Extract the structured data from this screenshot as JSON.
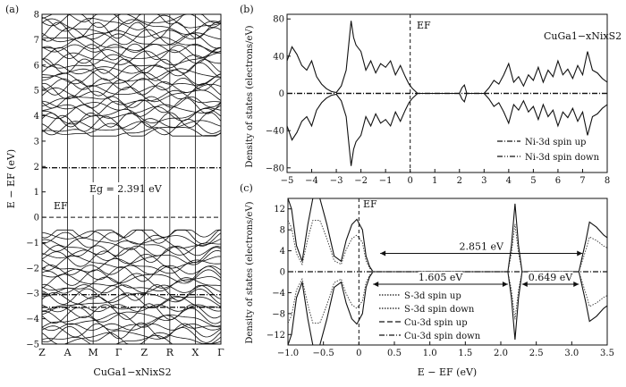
{
  "chart_data": [
    {
      "panel_label": "(a)",
      "type": "line",
      "xlabel": "CuGa1−xNixS2",
      "ylabel": "E − EF (eV)",
      "ylim": [
        -5,
        8
      ],
      "y_ticks": [
        "−5",
        "−4",
        "−3",
        "−2",
        "−1",
        "0",
        "1",
        "2",
        "3",
        "4",
        "5",
        "6",
        "7",
        "8"
      ],
      "y_tick_values": [
        -5,
        -4,
        -3,
        -2,
        -1,
        0,
        1,
        2,
        3,
        4,
        5,
        6,
        7,
        8
      ],
      "k_points": [
        "Z",
        "A",
        "M",
        "Γ",
        "Z",
        "R",
        "X",
        "Γ"
      ],
      "fermi_label": "EF",
      "gap_label": "Eg = 2.391 eV",
      "band_gap_eV": 2.391,
      "flat_bands": [
        {
          "level": 1.95,
          "style": "dash-dot"
        },
        {
          "level": -3.05,
          "style": "dash-dot"
        },
        {
          "level": -3.55,
          "style": "dash-dot"
        }
      ],
      "conduction_band_window": [
        3.2,
        8
      ],
      "valence_band_window": [
        -5,
        -0.5
      ]
    },
    {
      "panel_label": "(b)",
      "type": "line",
      "title": "CuGa1−xNixS2",
      "xlabel": "",
      "ylabel": "Density of states (electrons/eV)",
      "xlim": [
        -5,
        8
      ],
      "ylim": [
        -85,
        85
      ],
      "x_ticks": [
        "−5",
        "−4",
        "−3",
        "−2",
        "−1",
        "0",
        "1",
        "2",
        "3",
        "4",
        "5",
        "6",
        "7",
        "8"
      ],
      "x_tick_values": [
        -5,
        -4,
        -3,
        -2,
        -1,
        0,
        1,
        2,
        3,
        4,
        5,
        6,
        7,
        8
      ],
      "y_ticks": [
        "−80",
        "−40",
        "0",
        "40",
        "80"
      ],
      "y_tick_values": [
        -80,
        -40,
        0,
        40,
        80
      ],
      "fermi_label": "EF",
      "legend_position": "bottom-right",
      "series": [
        {
          "name": "Ni-3d spin up",
          "style": "dash-dot",
          "x": [
            -5,
            8
          ],
          "y": [
            0,
            0
          ]
        },
        {
          "name": "Ni-3d spin down",
          "style": "dash-dot",
          "x": [
            -5,
            8
          ],
          "y": [
            0,
            0
          ]
        }
      ],
      "total_dos": {
        "x": [
          -5,
          -4.8,
          -4.6,
          -4.4,
          -4.2,
          -4.0,
          -3.8,
          -3.6,
          -3.4,
          -3.2,
          -3.0,
          -2.8,
          -2.6,
          -2.4,
          -2.3,
          -2.2,
          -2.0,
          -1.8,
          -1.6,
          -1.4,
          -1.2,
          -1.0,
          -0.8,
          -0.6,
          -0.4,
          -0.2,
          -0.05,
          0.1,
          0.3,
          2.0,
          2.1,
          2.2,
          2.3,
          3.0,
          3.2,
          3.4,
          3.6,
          3.8,
          4.0,
          4.2,
          4.4,
          4.6,
          4.8,
          5.0,
          5.2,
          5.4,
          5.6,
          5.8,
          6.0,
          6.2,
          6.4,
          6.6,
          6.8,
          7.0,
          7.2,
          7.4,
          7.6,
          7.8,
          8.0
        ],
        "y": [
          35,
          50,
          42,
          30,
          25,
          35,
          18,
          10,
          5,
          2,
          1,
          8,
          25,
          78,
          60,
          52,
          45,
          25,
          35,
          22,
          32,
          28,
          35,
          20,
          30,
          18,
          10,
          5,
          0,
          0,
          -6,
          -9,
          0,
          0,
          6,
          14,
          10,
          20,
          32,
          12,
          18,
          8,
          20,
          14,
          28,
          12,
          25,
          18,
          35,
          20,
          26,
          16,
          30,
          20,
          45,
          25,
          22,
          16,
          12
        ]
      }
    },
    {
      "panel_label": "(c)",
      "type": "line",
      "xlabel": "E − EF (eV)",
      "ylabel": "Density of states (electrons/eV)",
      "xlim": [
        -1.0,
        3.5
      ],
      "ylim": [
        -14,
        14
      ],
      "x_ticks": [
        "−1.0",
        "−0.5",
        "0",
        "0.5",
        "1.0",
        "1.5",
        "2.0",
        "2.5",
        "3.0",
        "3.5"
      ],
      "x_tick_values": [
        -1.0,
        -0.5,
        0,
        0.5,
        1.0,
        1.5,
        2.0,
        2.5,
        3.0,
        3.5
      ],
      "y_ticks": [
        "−12",
        "−8",
        "−4",
        "0",
        "4",
        "8",
        "12"
      ],
      "y_tick_values": [
        -12,
        -8,
        -4,
        0,
        4,
        8,
        12
      ],
      "fermi_label": "EF",
      "legend_position": "bottom-left",
      "annotations": [
        {
          "text": "2.851 eV",
          "from": 0.3,
          "to": 3.15,
          "y": 3.5
        },
        {
          "text": "1.605 eV",
          "from": 0.2,
          "to": 2.1,
          "y": -2.4
        },
        {
          "text": "0.649 eV",
          "from": 2.3,
          "to": 3.1,
          "y": -2.4
        }
      ],
      "series": [
        {
          "name": "S-3d spin up",
          "style": "dotted"
        },
        {
          "name": "S-3d spin down",
          "style": "dotted"
        },
        {
          "name": "Cu-3d spin up",
          "style": "dashed"
        },
        {
          "name": "Cu-3d spin down",
          "style": "dash-dot"
        }
      ],
      "total_dos": {
        "x": [
          -1.0,
          -0.95,
          -0.88,
          -0.8,
          -0.72,
          -0.65,
          -0.55,
          -0.45,
          -0.35,
          -0.25,
          -0.18,
          -0.1,
          -0.03,
          0.05,
          0.1,
          0.15,
          0.2,
          2.1,
          2.15,
          2.2,
          2.25,
          2.3,
          3.1,
          3.2,
          3.25,
          3.35,
          3.45,
          3.5
        ],
        "y": [
          14,
          12,
          5,
          2,
          9,
          14,
          14,
          9,
          3,
          2,
          6,
          9,
          10,
          8,
          3,
          1,
          0,
          0,
          -5,
          -13,
          -5,
          0,
          0,
          6,
          9.5,
          8.5,
          7,
          6.5
        ]
      }
    }
  ]
}
